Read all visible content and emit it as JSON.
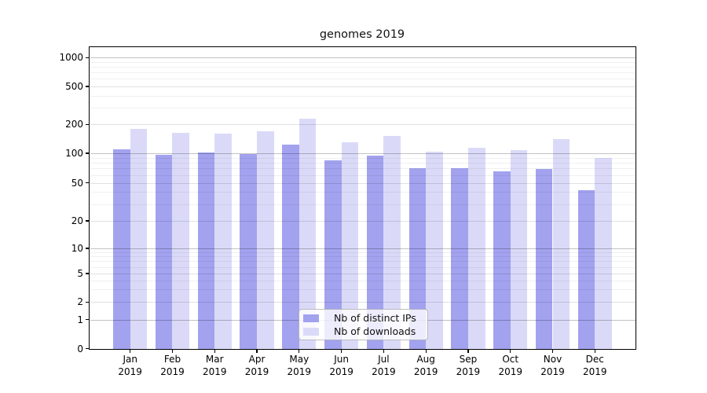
{
  "chart_data": {
    "type": "bar",
    "title": "genomes 2019",
    "categories": [
      "Jan 2019",
      "Feb 2019",
      "Mar 2019",
      "Apr 2019",
      "May 2019",
      "Jun 2019",
      "Jul 2019",
      "Aug 2019",
      "Sep 2019",
      "Oct 2019",
      "Nov 2019",
      "Dec 2019"
    ],
    "months": [
      "Jan",
      "Feb",
      "Mar",
      "Apr",
      "May",
      "Jun",
      "Jul",
      "Aug",
      "Sep",
      "Oct",
      "Nov",
      "Dec"
    ],
    "year": "2019",
    "series": [
      {
        "name": "Nb of distinct IPs",
        "color": "#a2a2ef",
        "values": [
          110,
          96,
          101,
          99,
          122,
          84,
          94,
          70,
          70,
          65,
          69,
          42
        ]
      },
      {
        "name": "Nb of downloads",
        "color": "#dadaf8",
        "values": [
          178,
          162,
          159,
          170,
          230,
          130,
          151,
          103,
          115,
          107,
          140,
          90
        ]
      }
    ],
    "ylabel": "",
    "xlabel": "",
    "yscale": "log-like with 0 baseline",
    "ylim": [
      0,
      1300
    ],
    "yticks": [
      0,
      1,
      2,
      5,
      10,
      20,
      50,
      100,
      200,
      500,
      1000
    ],
    "major_gridline_values": [
      1,
      10,
      100,
      1000
    ],
    "labeled_minor_values": [
      2,
      5,
      20,
      50,
      200,
      500
    ],
    "minor_gridline_values": [
      3,
      4,
      6,
      7,
      8,
      9,
      30,
      40,
      60,
      70,
      80,
      90,
      300,
      400,
      600,
      700,
      800,
      900
    ],
    "grid": true,
    "legend_position": "lower center",
    "colors": {
      "distinct_ips": "#a2a2ef",
      "downloads": "#dadaf8"
    }
  }
}
